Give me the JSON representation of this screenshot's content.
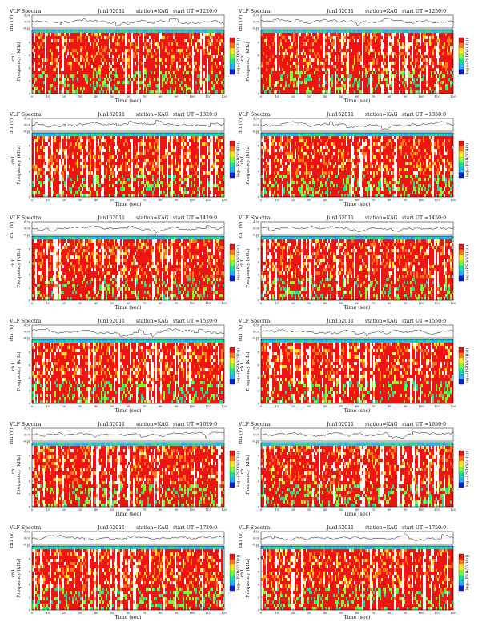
{
  "page": {
    "background": "#ffffff"
  },
  "colors": {
    "trace": "#111111",
    "frame": "#000000",
    "colormap": [
      "#0a1fd8",
      "#1fb4ff",
      "#19e09a",
      "#7dff2e",
      "#ffe617",
      "#ff7a12",
      "#f01313",
      "#ffffff"
    ]
  },
  "labels": {
    "heading": "VLF Spectra",
    "station": "station=KAG",
    "start_prefix": "start  UT",
    "trace_ylabel": "ch1 (V)",
    "spec_ylabel": "Frequency  (kHz)",
    "spec_ylabel_alt": "ch1",
    "xlabel": "Time  (sec)",
    "colorbar_label": "log₁₀(PSD(V²/Hz))"
  },
  "chart_data": [
    {
      "type": "heatmap",
      "panel": 1,
      "title": "VLF Spectra",
      "date": "Jun162011",
      "station": "station=KAG",
      "start": "=1220:0",
      "x": [
        0,
        10,
        20,
        30,
        40,
        50,
        60,
        70,
        80,
        90,
        100,
        110,
        120
      ],
      "xlim": [
        0,
        120
      ],
      "xlabel": "Time  (sec)",
      "trace_ylabel": "ch1 (V)",
      "trace_yticks": [
        "0.30",
        "0.00",
        "-0.30"
      ],
      "trace_ylim": [
        -0.3,
        0.3
      ],
      "ylabel": "Frequency  (kHz)",
      "yticks": [
        0,
        2,
        4,
        6,
        8,
        10
      ],
      "ylim": [
        0,
        10
      ]
    },
    {
      "type": "heatmap",
      "panel": 2,
      "title": "VLF Spectra",
      "date": "Jun162011",
      "station": "station=KAG",
      "start": "=1250:0",
      "x": [
        0,
        10,
        20,
        30,
        40,
        50,
        60,
        70,
        80,
        90,
        100,
        110,
        120
      ],
      "xlim": [
        0,
        120
      ],
      "xlabel": "Time  (sec)",
      "trace_ylabel": "ch1 (V)",
      "trace_yticks": [
        "0.30",
        "0.00",
        "-0.30"
      ],
      "trace_ylim": [
        -0.3,
        0.3
      ],
      "ylabel": "Frequency  (kHz)",
      "yticks": [
        0,
        2,
        4,
        6,
        8,
        10
      ],
      "ylim": [
        0,
        10
      ]
    },
    {
      "type": "heatmap",
      "panel": 3,
      "title": "VLF Spectra",
      "date": "Jun162011",
      "station": "station=KAG",
      "start": "=1320:0",
      "x": [
        0,
        10,
        20,
        30,
        40,
        50,
        60,
        70,
        80,
        90,
        100,
        110,
        120
      ],
      "xlim": [
        0,
        120
      ],
      "xlabel": "Time  (sec)",
      "trace_ylabel": "ch1 (V)",
      "trace_yticks": [
        "0.30",
        "0.00",
        "-0.30"
      ],
      "trace_ylim": [
        -0.3,
        0.3
      ],
      "ylabel": "Frequency  (kHz)",
      "yticks": [
        0,
        2,
        4,
        6,
        8,
        10
      ],
      "ylim": [
        0,
        10
      ]
    },
    {
      "type": "heatmap",
      "panel": 4,
      "title": "VLF Spectra",
      "date": "Jun162011",
      "station": "station=KAG",
      "start": "=1350:0",
      "x": [
        0,
        10,
        20,
        30,
        40,
        50,
        60,
        70,
        80,
        90,
        100,
        110,
        120
      ],
      "xlim": [
        0,
        120
      ],
      "xlabel": "Time  (sec)",
      "trace_ylabel": "ch1 (V)",
      "trace_yticks": [
        "0.30",
        "0.00",
        "-0.30"
      ],
      "trace_ylim": [
        -0.3,
        0.3
      ],
      "ylabel": "Frequency  (kHz)",
      "yticks": [
        0,
        2,
        4,
        6,
        8,
        10
      ],
      "ylim": [
        0,
        10
      ]
    },
    {
      "type": "heatmap",
      "panel": 5,
      "title": "VLF Spectra",
      "date": "Jun162011",
      "station": "station=KAG",
      "start": "=1420:0",
      "x": [
        0,
        10,
        20,
        30,
        40,
        50,
        60,
        70,
        80,
        90,
        100,
        110,
        120
      ],
      "xlim": [
        0,
        120
      ],
      "xlabel": "Time  (sec)",
      "trace_ylabel": "ch1 (V)",
      "trace_yticks": [
        "0.30",
        "0.00",
        "-0.30"
      ],
      "trace_ylim": [
        -0.3,
        0.3
      ],
      "ylabel": "Frequency  (kHz)",
      "yticks": [
        0,
        2,
        4,
        6,
        8,
        10
      ],
      "ylim": [
        0,
        10
      ]
    },
    {
      "type": "heatmap",
      "panel": 6,
      "title": "VLF Spectra",
      "date": "Jun162011",
      "station": "station=KAG",
      "start": "=1450:0",
      "x": [
        0,
        10,
        20,
        30,
        40,
        50,
        60,
        70,
        80,
        90,
        100,
        110,
        120
      ],
      "xlim": [
        0,
        120
      ],
      "xlabel": "Time  (sec)",
      "trace_ylabel": "ch1 (V)",
      "trace_yticks": [
        "0.30",
        "0.00",
        "-0.30"
      ],
      "trace_ylim": [
        -0.3,
        0.3
      ],
      "ylabel": "Frequency  (kHz)",
      "yticks": [
        0,
        2,
        4,
        6,
        8,
        10
      ],
      "ylim": [
        0,
        10
      ]
    },
    {
      "type": "heatmap",
      "panel": 7,
      "title": "VLF Spectra",
      "date": "Jun162011",
      "station": "station=KAG",
      "start": "=1520:0",
      "x": [
        0,
        10,
        20,
        30,
        40,
        50,
        60,
        70,
        80,
        90,
        100,
        110,
        120
      ],
      "xlim": [
        0,
        120
      ],
      "xlabel": "Time  (sec)",
      "trace_ylabel": "ch1 (V)",
      "trace_yticks": [
        "0.30",
        "0.00",
        "-0.30"
      ],
      "trace_ylim": [
        -0.3,
        0.3
      ],
      "ylabel": "Frequency  (kHz)",
      "yticks": [
        0,
        2,
        4,
        6,
        8,
        10
      ],
      "ylim": [
        0,
        10
      ]
    },
    {
      "type": "heatmap",
      "panel": 8,
      "title": "VLF Spectra",
      "date": "Jun162011",
      "station": "station=KAG",
      "start": "=1550:0",
      "x": [
        0,
        10,
        20,
        30,
        40,
        50,
        60,
        70,
        80,
        90,
        100,
        110,
        120
      ],
      "xlim": [
        0,
        120
      ],
      "xlabel": "Time  (sec)",
      "trace_ylabel": "ch1 (V)",
      "trace_yticks": [
        "0.30",
        "0.00",
        "-0.30"
      ],
      "trace_ylim": [
        -0.3,
        0.3
      ],
      "ylabel": "Frequency  (kHz)",
      "yticks": [
        0,
        2,
        4,
        6,
        8,
        10
      ],
      "ylim": [
        0,
        10
      ]
    },
    {
      "type": "heatmap",
      "panel": 9,
      "title": "VLF Spectra",
      "date": "Jun162011",
      "station": "station=KAG",
      "start": "=1620:0",
      "x": [
        0,
        10,
        20,
        30,
        40,
        50,
        60,
        70,
        80,
        90,
        100,
        110,
        120
      ],
      "xlim": [
        0,
        120
      ],
      "xlabel": "Time  (sec)",
      "trace_ylabel": "ch1 (V)",
      "trace_yticks": [
        "0.30",
        "0.00",
        "-0.30"
      ],
      "trace_ylim": [
        -0.3,
        0.3
      ],
      "ylabel": "Frequency  (kHz)",
      "yticks": [
        0,
        2,
        4,
        6,
        8,
        10
      ],
      "ylim": [
        0,
        10
      ]
    },
    {
      "type": "heatmap",
      "panel": 10,
      "title": "VLF Spectra",
      "date": "Jun162011",
      "station": "station=KAG",
      "start": "=1650:0",
      "x": [
        0,
        10,
        20,
        30,
        40,
        50,
        60,
        70,
        80,
        90,
        100,
        110,
        120
      ],
      "xlim": [
        0,
        120
      ],
      "xlabel": "Time  (sec)",
      "trace_ylabel": "ch1 (V)",
      "trace_yticks": [
        "0.30",
        "0.00",
        "-0.30"
      ],
      "trace_ylim": [
        -0.3,
        0.3
      ],
      "ylabel": "Frequency  (kHz)",
      "yticks": [
        0,
        2,
        4,
        6,
        8,
        10
      ],
      "ylim": [
        0,
        10
      ]
    },
    {
      "type": "heatmap",
      "panel": 11,
      "title": "VLF Spectra",
      "date": "Jun162011",
      "station": "station=KAG",
      "start": "=1720:0",
      "x": [
        0,
        10,
        20,
        30,
        40,
        50,
        60,
        70,
        80,
        90,
        100,
        110,
        120
      ],
      "xlim": [
        0,
        120
      ],
      "xlabel": "Time  (sec)",
      "trace_ylabel": "ch1 (V)",
      "trace_yticks": [
        "0.30",
        "0.00",
        "-0.30"
      ],
      "trace_ylim": [
        -0.3,
        0.3
      ],
      "ylabel": "Frequency  (kHz)",
      "yticks": [
        0,
        2,
        4,
        6,
        8,
        10
      ],
      "ylim": [
        0,
        10
      ]
    },
    {
      "type": "heatmap",
      "panel": 12,
      "title": "VLF Spectra",
      "date": "Jun162011",
      "station": "station=KAG",
      "start": "=1750:0",
      "x": [
        0,
        10,
        20,
        30,
        40,
        50,
        60,
        70,
        80,
        90,
        100,
        110,
        120
      ],
      "xlim": [
        0,
        120
      ],
      "xlabel": "Time  (sec)",
      "trace_ylabel": "ch1 (V)",
      "trace_yticks": [
        "0.30",
        "0.00",
        "-0.30"
      ],
      "trace_ylim": [
        -0.3,
        0.3
      ],
      "ylabel": "Frequency  (kHz)",
      "yticks": [
        0,
        2,
        4,
        6,
        8,
        10
      ],
      "ylim": [
        0,
        10
      ]
    }
  ]
}
